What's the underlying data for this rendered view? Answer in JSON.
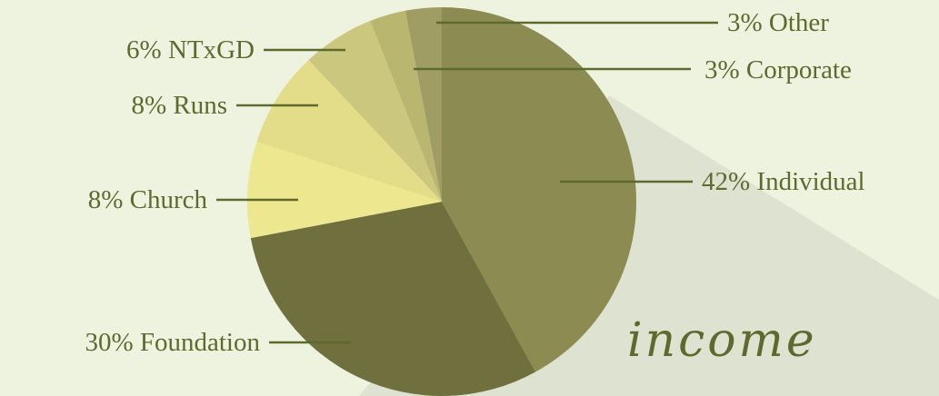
{
  "chart_data": {
    "type": "pie",
    "title": "income",
    "slices": [
      {
        "label": "42% Individual",
        "value": 42,
        "color": "#8b8b52"
      },
      {
        "label": "30% Foundation",
        "value": 30,
        "color": "#70703f"
      },
      {
        "label": "8% Church",
        "value": 8,
        "color": "#ede78f"
      },
      {
        "label": "8% Runs",
        "value": 8,
        "color": "#e3dc88"
      },
      {
        "label": "6% NTxGD",
        "value": 6,
        "color": "#cbc77e"
      },
      {
        "label": "3% Corporate",
        "value": 3,
        "color": "#b9b66f"
      },
      {
        "label": "3% Other",
        "value": 3,
        "color": "#9f9d63"
      }
    ],
    "legend": "none"
  },
  "colors": {
    "background": "#eef3e0",
    "shadow": "#dde3d0",
    "text": "#5c6a2e"
  }
}
